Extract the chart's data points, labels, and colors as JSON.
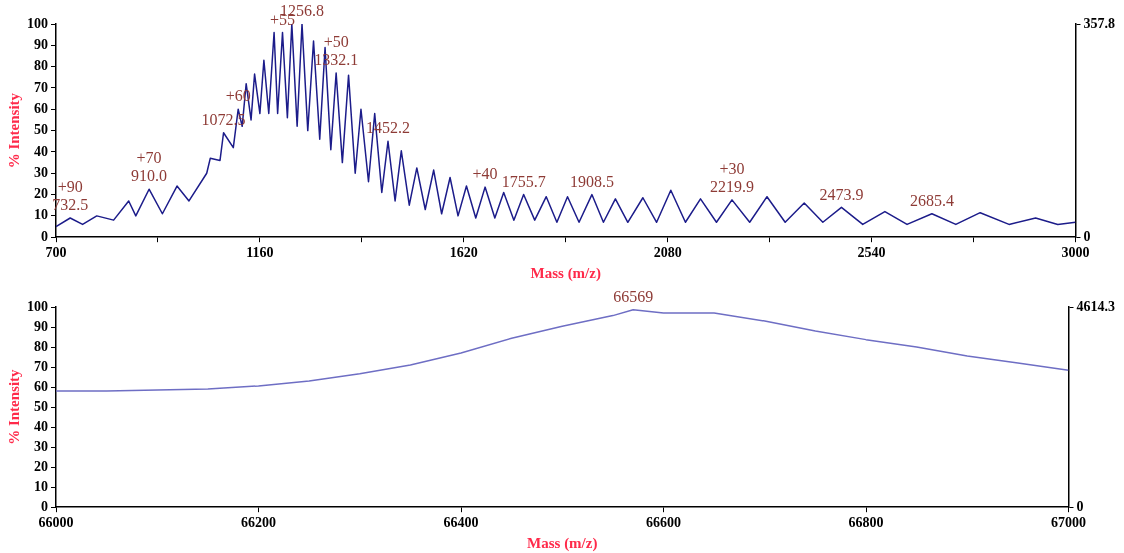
{
  "chart_data": [
    {
      "type": "line",
      "xlabel": "Mass (m/z)",
      "ylabel": "% Intensity",
      "marker": "none",
      "grid": false,
      "legend": false,
      "xlim": [
        700,
        3000
      ],
      "xticks": [
        700,
        {
          "value": 930,
          "label": null
        },
        1160,
        {
          "value": 1390,
          "label": null
        },
        1620,
        {
          "value": 1850,
          "label": null
        },
        2080,
        {
          "value": 2310,
          "label": null
        },
        2540,
        {
          "value": 2770,
          "label": null
        },
        3000
      ],
      "ylim": [
        0,
        100
      ],
      "yticks": [
        0,
        10,
        20,
        30,
        40,
        50,
        60,
        70,
        80,
        90,
        100
      ],
      "y2lim": [
        0,
        357.8
      ],
      "y2ticks": [
        0,
        357.8
      ],
      "series": [
        {
          "color": "#1c1c8a",
          "x": [
            700,
            732,
            760,
            792,
            830,
            864,
            880,
            910,
            940,
            973,
            1000,
            1040,
            1048,
            1070,
            1078,
            1100,
            1111,
            1120,
            1129,
            1140,
            1148,
            1160,
            1169,
            1180,
            1192,
            1200,
            1211,
            1222,
            1232,
            1244,
            1255,
            1268,
            1281,
            1295,
            1307,
            1320,
            1332,
            1346,
            1360,
            1375,
            1388,
            1405,
            1419,
            1435,
            1449,
            1465,
            1479,
            1497,
            1514,
            1533,
            1552,
            1570,
            1589,
            1607,
            1626,
            1647,
            1668,
            1690,
            1710,
            1733,
            1755,
            1780,
            1806,
            1830,
            1854,
            1880,
            1909,
            1935,
            1962,
            1990,
            2024,
            2055,
            2087,
            2120,
            2154,
            2190,
            2225,
            2265,
            2304,
            2345,
            2388,
            2430,
            2472,
            2520,
            2570,
            2620,
            2676,
            2730,
            2785,
            2850,
            2910,
            2960,
            3000
          ],
          "values": [
            5,
            9,
            6,
            10,
            8,
            17,
            10,
            22.5,
            11,
            24,
            17,
            30,
            37,
            36,
            49,
            42,
            60,
            52,
            72,
            55,
            76.5,
            58,
            83,
            58,
            96,
            58,
            96,
            56,
            100,
            52,
            100,
            50,
            92,
            46,
            89,
            41,
            77,
            35,
            76,
            30,
            60,
            26,
            58,
            21,
            45,
            17,
            40.5,
            15,
            32.5,
            13,
            31.5,
            11,
            28,
            10,
            24,
            9,
            23.5,
            9,
            21,
            8,
            20,
            8,
            19,
            7,
            19,
            7,
            20,
            7,
            18,
            7,
            18.5,
            7,
            22,
            7,
            18,
            7,
            17.5,
            7,
            19,
            7,
            16,
            7,
            14,
            6,
            12,
            6,
            11,
            6,
            11.5,
            6,
            9,
            6,
            7
          ]
        }
      ],
      "annotations": [
        {
          "text": "+90",
          "x": 732,
          "y": 9
        },
        {
          "text": "732.5",
          "x": 732,
          "y": 9
        },
        {
          "text": "+70",
          "x": 910,
          "y": 22.5
        },
        {
          "text": "910.0",
          "x": 910,
          "y": 22.5
        },
        {
          "text": "1072.5",
          "x": 1078,
          "y": 49
        },
        {
          "text": "+60",
          "x": 1111,
          "y": 60
        },
        {
          "text": "+55",
          "x": 1211,
          "y": 96
        },
        {
          "text": "1256.8",
          "x": 1255,
          "y": 100
        },
        {
          "text": "+50",
          "x": 1332,
          "y": 77
        },
        {
          "text": "1332.1",
          "x": 1332,
          "y": 77
        },
        {
          "text": "1452.2",
          "x": 1449,
          "y": 45
        },
        {
          "text": "+40",
          "x": 1668,
          "y": 23.5
        },
        {
          "text": "1755.7",
          "x": 1755,
          "y": 20
        },
        {
          "text": "1908.5",
          "x": 1909,
          "y": 20
        },
        {
          "text": "+30",
          "x": 2225,
          "y": 17.5
        },
        {
          "text": "2219.9",
          "x": 2225,
          "y": 17.5
        },
        {
          "text": "2473.9",
          "x": 2472,
          "y": 14
        },
        {
          "text": "2685.4",
          "x": 2676,
          "y": 11
        }
      ]
    },
    {
      "type": "line",
      "xlabel": "Mass (m/z)",
      "ylabel": "% Intensity",
      "marker": "none",
      "grid": false,
      "legend": false,
      "xlim": [
        66000,
        67000
      ],
      "xticks": [
        66000,
        66200,
        66400,
        66600,
        66800,
        67000
      ],
      "ylim": [
        0,
        100
      ],
      "yticks": [
        0,
        10,
        20,
        30,
        40,
        50,
        60,
        70,
        80,
        90,
        100
      ],
      "y2lim": [
        0,
        4614.3
      ],
      "y2ticks": [
        0,
        4614.3
      ],
      "series": [
        {
          "color": "#6e6ec4",
          "x": [
            66000,
            66050,
            66100,
            66150,
            66200,
            66250,
            66300,
            66350,
            66400,
            66450,
            66500,
            66550,
            66570,
            66600,
            66650,
            66700,
            66750,
            66800,
            66850,
            66900,
            66950,
            67000
          ],
          "values": [
            58,
            58,
            58.5,
            59,
            60.6,
            63,
            66.7,
            71,
            77,
            84.4,
            90.4,
            95.7,
            98.6,
            97,
            97,
            93,
            88,
            83.7,
            80,
            75.5,
            72,
            68.4
          ]
        }
      ],
      "annotations": [
        {
          "text": "66569",
          "x": 66570,
          "y": 98.6
        }
      ]
    }
  ]
}
